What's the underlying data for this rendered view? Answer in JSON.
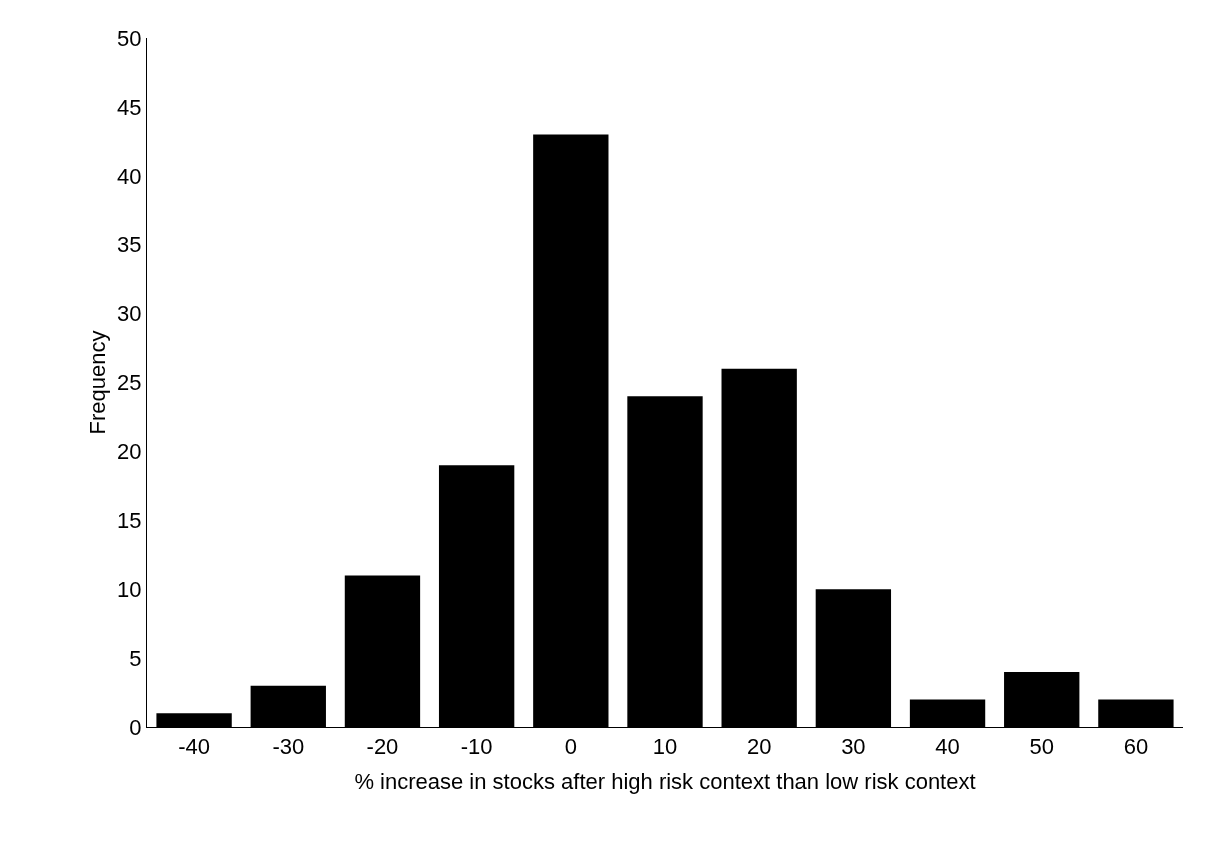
{
  "chart_data": {
    "type": "bar",
    "xlabel": "% increase in stocks after high risk context than low risk context",
    "ylabel": "Frequency",
    "categories": [
      "-40",
      "-30",
      "-20",
      "-10",
      "0",
      "10",
      "20",
      "30",
      "40",
      "50",
      "60"
    ],
    "values": [
      1,
      3,
      11,
      19,
      43,
      24,
      26,
      10,
      2,
      4,
      2
    ],
    "color": "#000000",
    "ylim": [
      0,
      50
    ],
    "yticks": [
      0,
      5,
      10,
      15,
      20,
      25,
      30,
      35,
      40,
      45,
      50
    ]
  }
}
